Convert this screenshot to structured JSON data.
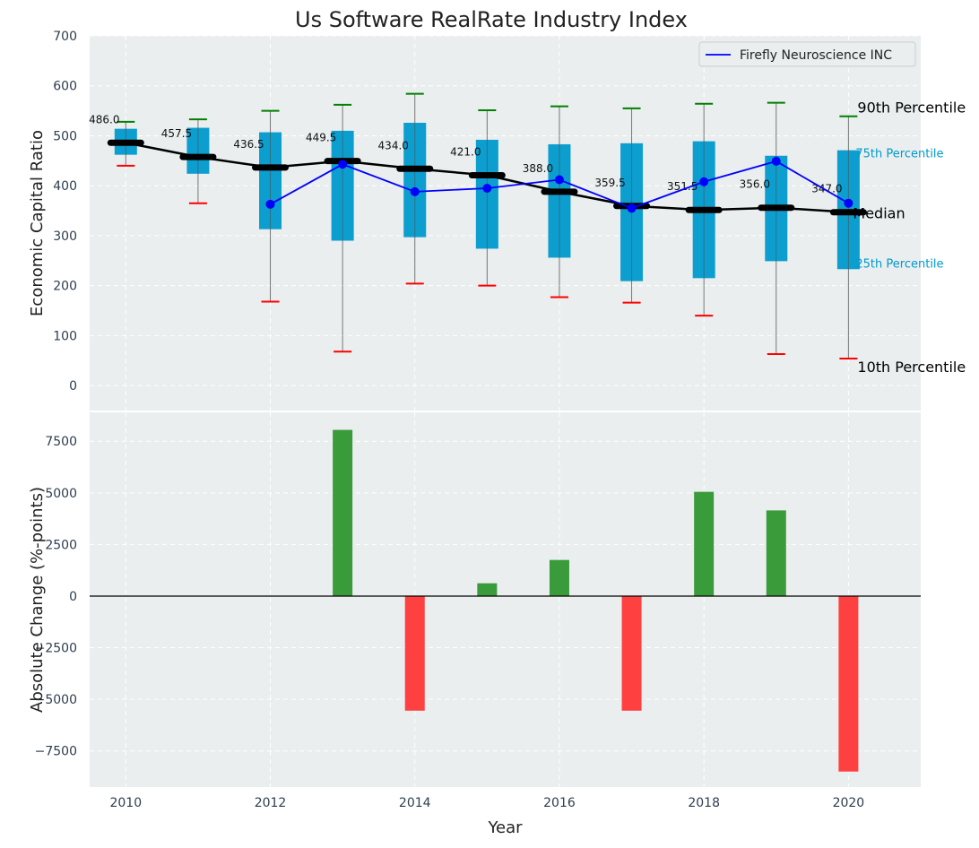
{
  "chart_data": [
    {
      "type": "box",
      "title": "Us Software RealRate Industry Index",
      "xlabel": "",
      "ylabel": "Economic Capital Ratio",
      "xlim": [
        2009.5,
        2021
      ],
      "ylim": [
        -50,
        700
      ],
      "yticks": [
        0,
        100,
        200,
        300,
        400,
        500,
        600,
        700
      ],
      "grid": true,
      "legend": {
        "position": "top-right",
        "entries": [
          "Firefly Neuroscience INC"
        ]
      },
      "years": [
        2010,
        2011,
        2012,
        2013,
        2014,
        2015,
        2016,
        2017,
        2018,
        2019,
        2020
      ],
      "p10": [
        440,
        365,
        168,
        68,
        204,
        200,
        177,
        166,
        140,
        63,
        54
      ],
      "p25": [
        462,
        424,
        313,
        290,
        297,
        274,
        256,
        209,
        215,
        249,
        233
      ],
      "median": [
        486.0,
        457.5,
        436.5,
        449.5,
        434.0,
        421.0,
        388.0,
        359.5,
        351.5,
        356.0,
        347.0
      ],
      "median_labels": [
        "486.0",
        "457.5",
        "436.5",
        "449.5",
        "434.0",
        "421.0",
        "388.0",
        "359.5",
        "351.5",
        "356.0",
        "347.0"
      ],
      "p75": [
        514,
        516,
        507,
        510,
        526,
        492,
        483,
        485,
        489,
        460,
        471
      ],
      "p90": [
        528,
        533,
        550,
        562,
        584,
        551,
        559,
        555,
        564,
        566,
        539
      ],
      "series": [
        {
          "name": "Firefly Neuroscience INC",
          "color": "#0000ff",
          "x": [
            2012,
            2013,
            2014,
            2015,
            2016,
            2017,
            2018,
            2019,
            2020
          ],
          "y": [
            363,
            443,
            388,
            395,
            412,
            355,
            408,
            449,
            365
          ]
        }
      ],
      "annotations": {
        "p90": "90th Percentile",
        "p75": "75th Percentile",
        "median": "Median",
        "p25": "25th Percentile",
        "p10": "10th Percentile"
      },
      "colors": {
        "box": "#0099cc",
        "p90": "#008000",
        "p10": "#ff0000",
        "median": "#000000",
        "background": "#eaeeef"
      }
    },
    {
      "type": "bar",
      "xlabel": "Year",
      "ylabel": "Absolute Change (%-points)",
      "xlim": [
        2009.5,
        2021
      ],
      "ylim": [
        -9250,
        8900
      ],
      "yticks": [
        -7500,
        -5000,
        -2500,
        0,
        2500,
        5000,
        7500
      ],
      "ytick_labels": [
        "−7500",
        "−5000",
        "−2500",
        "0",
        "2500",
        "5000",
        "7500"
      ],
      "xticks": [
        2010,
        2012,
        2014,
        2016,
        2018,
        2020
      ],
      "xtick_labels": [
        "2010",
        "2012",
        "2014",
        "2016",
        "2018",
        "2020"
      ],
      "x": [
        2013,
        2014,
        2015,
        2016,
        2017,
        2018,
        2019,
        2020
      ],
      "values": [
        8050,
        -5550,
        620,
        1750,
        -5550,
        5050,
        4150,
        -8500
      ],
      "colors": {
        "positive": "#3a9b3a",
        "negative": "#ff4040"
      }
    }
  ]
}
